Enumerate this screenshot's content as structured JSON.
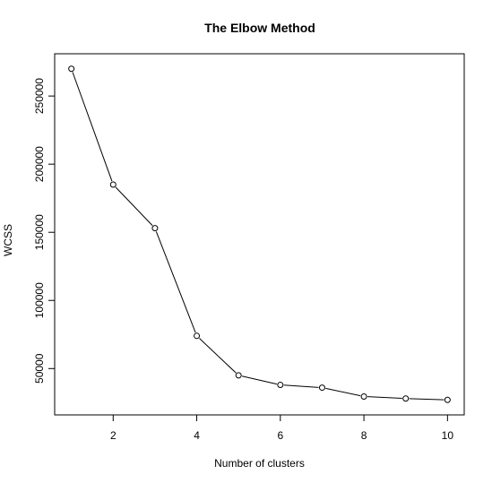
{
  "chart_data": {
    "type": "line",
    "title": "The Elbow Method",
    "xlabel": "Number of clusters",
    "ylabel": "WCSS",
    "x": [
      1,
      2,
      3,
      4,
      5,
      6,
      7,
      8,
      9,
      10
    ],
    "series": [
      {
        "values": [
          270000,
          185000,
          153000,
          74000,
          45000,
          38000,
          36000,
          29500,
          28000,
          27000
        ]
      }
    ],
    "xlim": [
      0.6,
      10.4
    ],
    "ylim": [
      16000,
      281000
    ],
    "xticks": [
      2,
      4,
      6,
      8,
      10
    ],
    "yticks": [
      50000,
      100000,
      150000,
      200000,
      250000
    ],
    "xtick_labels": [
      "2",
      "4",
      "6",
      "8",
      "10"
    ],
    "ytick_labels": [
      "50000",
      "100000",
      "150000",
      "200000",
      "250000"
    ],
    "grid": false,
    "legend": "none",
    "line_color": "#000000",
    "marker": "open-circle"
  }
}
